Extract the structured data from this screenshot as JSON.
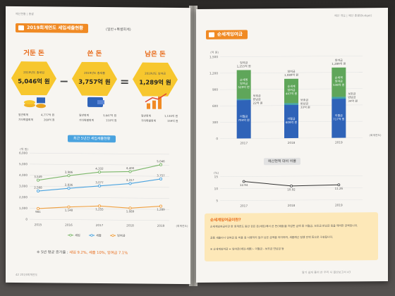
{
  "left_page": {
    "header": "예산현황 | 총괄",
    "section_title": "2019회계연도 세입세출현황",
    "section_sub": "(일반+특별회계)",
    "cards": [
      {
        "word": "거둔 돈",
        "caption": "2019년도 총세입",
        "value": "5,046억 원",
        "rows": [
          [
            "일반회계",
            "4,777억 원"
          ],
          [
            "기타특별회계",
            "269억 원"
          ]
        ]
      },
      {
        "word": "쓴 돈",
        "caption": "2019년도 총세출",
        "value": "3,757억 원",
        "rows": [
          [
            "일반회계",
            "3,647억 원"
          ],
          [
            "기타특별회계",
            "110억 원"
          ]
        ]
      },
      {
        "word": "남은 돈",
        "caption": "2019년도 잉여금",
        "value": "1,289억 원",
        "rows": [
          [
            "일반회계",
            "1,130억 원"
          ],
          [
            "기타특별회계",
            "159억 원"
          ]
        ]
      }
    ],
    "operators": [
      "−",
      "="
    ],
    "line_chart_title": "최근 5년간 세입세출현황",
    "average_prefix": "※ 5년 평균 증가율 :",
    "average_values": "세입 9.2%, 세출 10%, 잉여금 7.1%",
    "footer": "42   2019회계연도"
  },
  "right_page": {
    "header": "예산 개요 | 예산 총괄(Budget)",
    "section_title": "순세계잉여금",
    "ratio_chart_title": "예산현액 대비 비율",
    "box_title": "순세계잉여금이란?",
    "box_lines": [
      "순세계잉여금이란 한 회계연도 동안 걷은 돈(세입)에서 쓴 돈(세출)을 차감한 금액 중 이월금, 보조금 반납금 등을 제외한 금액입니다.",
      "공용 세출이나 잉여금 등 비용 중 사용하지 않고 남은 금액을 의미하며, 세출예산 집행 잔액 등으로 구성됩니다.",
      "※ 순세계잉여금 = 잉여금(세입-세출) - 이월금 - 보조금 반납금 등"
    ],
    "footer": "알기 쉽게 풀어 쓴 우리 시 결산보고서   43"
  },
  "chart_data": [
    {
      "type": "line",
      "title": "최근 5년간 세입세출현황",
      "ylabel": "(억 원)",
      "xlabel": "(회계연도)",
      "categories": [
        "2015",
        "2016",
        "2017",
        "2018",
        "2019"
      ],
      "ylim": [
        0,
        6000
      ],
      "yticks": [
        "0",
        "1,000",
        "2,000",
        "3,000",
        "4,000",
        "5,000",
        "6,000"
      ],
      "series": [
        {
          "name": "세입",
          "color": "#7bb76a",
          "values": [
            3549,
            3986,
            4332,
            4400,
            5046
          ],
          "labels": [
            "3,549",
            "3,986",
            "4,332",
            "4,400",
            "5,046"
          ]
        },
        {
          "name": "세출",
          "color": "#4aa3df",
          "values": [
            2568,
            2836,
            3077,
            3317,
            3757
          ],
          "labels": [
            "2,568",
            "2,836",
            "3,077",
            "3,317",
            "3,757"
          ]
        },
        {
          "name": "잉여금",
          "color": "#f0a040",
          "values": [
            981,
            1148,
            1255,
            1089,
            1289
          ],
          "labels": [
            "981",
            "1,148",
            "1,255",
            "1,089",
            "1,289"
          ]
        }
      ]
    },
    {
      "type": "bar",
      "stacked": true,
      "ylabel": "(억 원)",
      "xlabel": "(회계연도)",
      "categories": [
        "2017",
        "2018",
        "2019"
      ],
      "ylim": [
        0,
        1500
      ],
      "yticks": [
        "0",
        "300",
        "600",
        "900",
        "1,200",
        "1,500"
      ],
      "top_labels": [
        [
          "잉여금",
          "1,255억 원"
        ],
        [
          "잉여금",
          "1,089억 원"
        ],
        [
          "잉여금",
          "1,289억 원"
        ]
      ],
      "series": [
        {
          "name": "이월금",
          "color": "#2f63b8",
          "values": [
            704,
            609,
            717
          ],
          "labels": [
            [
              "이월금",
              "704억 원"
            ],
            [
              "이월금",
              "609억 원"
            ],
            [
              "이월금",
              "717억 원"
            ]
          ]
        },
        {
          "name": "보조금 반납금",
          "color": "#3fa1a8",
          "values": [
            22,
            33,
            34
          ],
          "labels": [
            [
              "보조금",
              "반납금",
              "22억 원"
            ],
            [
              "보조금",
              "반납금",
              "33억 원"
            ],
            [
              "보조금",
              "반납금",
              "34억 원"
            ]
          ]
        },
        {
          "name": "순세계잉여금",
          "color": "#5fa65a",
          "values": [
            529,
            447,
            538
          ],
          "labels": [
            [
              "순세계",
              "잉여금",
              "529억 원"
            ],
            [
              "순세계",
              "잉여금",
              "447억 원"
            ],
            [
              "순세계",
              "잉여금",
              "538억 원"
            ]
          ]
        }
      ]
    },
    {
      "type": "line",
      "title": "예산현액 대비 비율",
      "ylabel": "(%)",
      "categories": [
        "2017",
        "2018",
        "2019"
      ],
      "ylim": [
        5,
        15
      ],
      "yticks": [
        "5",
        "10",
        "15"
      ],
      "series": [
        {
          "name": "비율",
          "color": "#333333",
          "values": [
            12.94,
            10.92,
            11.26
          ],
          "labels": [
            "12.94",
            "10.92",
            "11.26"
          ]
        }
      ]
    }
  ]
}
